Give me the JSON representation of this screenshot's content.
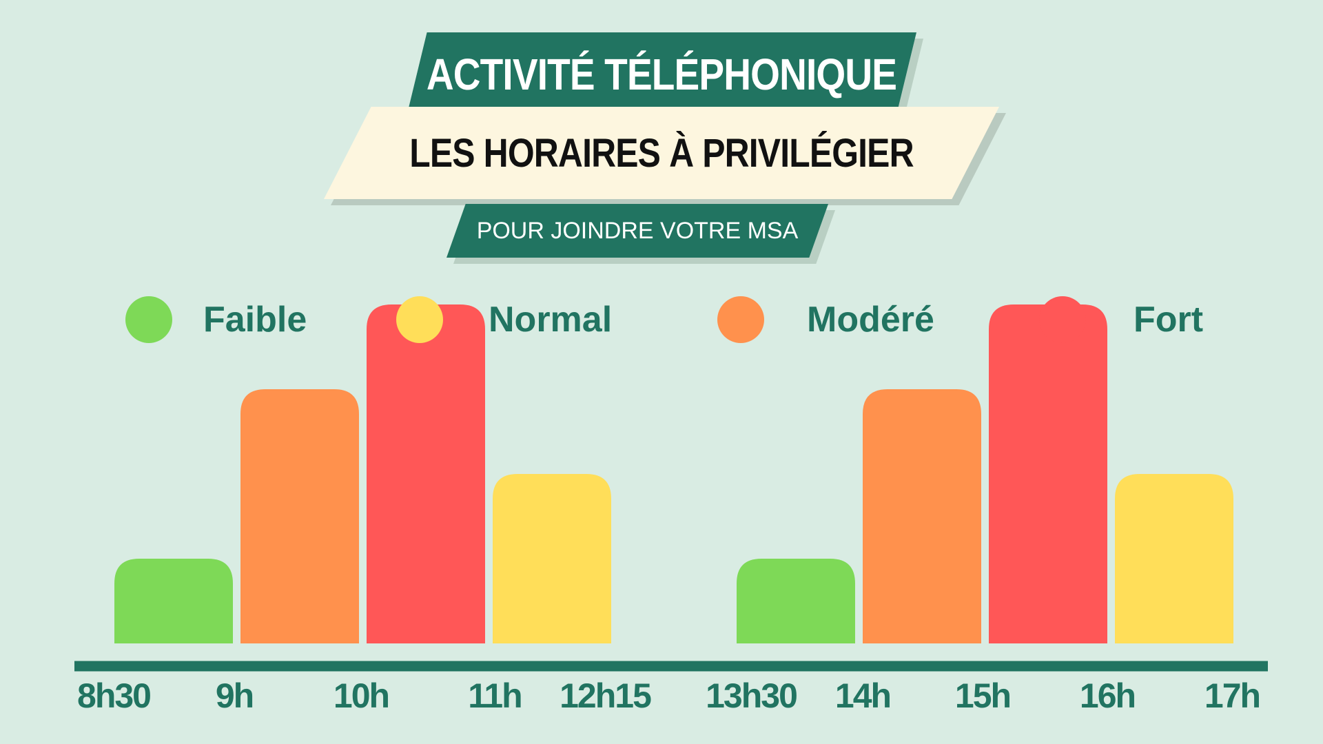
{
  "header": {
    "title": "ACTIVITÉ TÉLÉPHONIQUE",
    "subtitle": "LES HORAIRES À PRIVILÉGIER",
    "tagline": "POUR JOINDRE VOTRE MSA"
  },
  "legend": [
    {
      "label": "Faible",
      "color": "#7ed957"
    },
    {
      "label": "Normal",
      "color": "#ffde59"
    },
    {
      "label": "Modéré",
      "color": "#ff914d"
    },
    {
      "label": "Fort",
      "color": "#ff5757"
    }
  ],
  "colors": {
    "accent": "#217461",
    "background": "#d9ece3"
  },
  "chart_data": {
    "type": "bar",
    "title": "ACTIVITÉ TÉLÉPHONIQUE",
    "subtitle": "LES HORAIRES À PRIVILÉGIER",
    "xlabel": "",
    "ylabel": "",
    "grid": false,
    "legend_position": "top",
    "tick_labels": [
      "8h30",
      "9h",
      "10h",
      "11h",
      "12h15",
      "13h30",
      "14h",
      "15h",
      "16h",
      "17h"
    ],
    "groups": [
      {
        "bars": [
          {
            "from": "8h30",
            "to": "9h",
            "level": "Faible",
            "value": 1
          },
          {
            "from": "9h",
            "to": "10h",
            "level": "Modéré",
            "value": 3
          },
          {
            "from": "10h",
            "to": "11h",
            "level": "Fort",
            "value": 4
          },
          {
            "from": "11h",
            "to": "12h15",
            "level": "Normal",
            "value": 2
          }
        ]
      },
      {
        "bars": [
          {
            "from": "13h30",
            "to": "14h",
            "level": "Faible",
            "value": 1
          },
          {
            "from": "14h",
            "to": "15h",
            "level": "Modéré",
            "value": 3
          },
          {
            "from": "15h",
            "to": "16h",
            "level": "Fort",
            "value": 4
          },
          {
            "from": "16h",
            "to": "17h",
            "level": "Normal",
            "value": 2
          }
        ]
      }
    ]
  }
}
